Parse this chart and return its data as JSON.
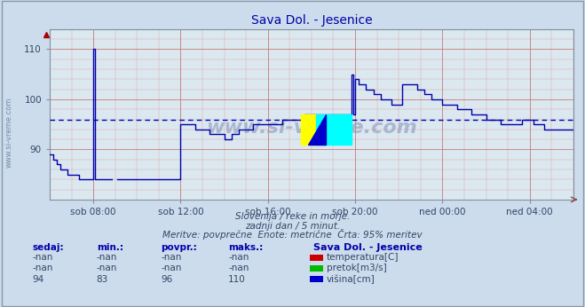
{
  "title": "Sava Dol. - Jesenice",
  "bg_color": "#ccdcec",
  "plot_bg_color": "#dce8f0",
  "line_color": "#0000aa",
  "avg_line_color": "#0000cc",
  "avg_line_value": 96,
  "ylim": [
    80,
    114
  ],
  "yticks": [
    90,
    100,
    110
  ],
  "xticklabels": [
    "sob 08:00",
    "sob 12:00",
    "sob 16:00",
    "sob 20:00",
    "ned 00:00",
    "ned 04:00"
  ],
  "subtitle1": "Slovenija / reke in morje.",
  "subtitle2": "zadnji dan / 5 minut.",
  "subtitle3": "Meritve: povprečne  Enote: metrične  Črta: 95% meritev",
  "legend_title": "Sava Dol. - Jesenice",
  "legend_items": [
    {
      "label": "temperatura[C]",
      "color": "#cc0000"
    },
    {
      "label": "pretok[m3/s]",
      "color": "#00bb00"
    },
    {
      "label": "višina[cm]",
      "color": "#0000cc"
    }
  ],
  "table_headers": [
    "sedaj:",
    "min.:",
    "povpr.:",
    "maks.:"
  ],
  "table_rows": [
    [
      "-nan",
      "-nan",
      "-nan",
      "-nan"
    ],
    [
      "-nan",
      "-nan",
      "-nan",
      "-nan"
    ],
    [
      "94",
      "83",
      "96",
      "110"
    ]
  ],
  "watermark": "www.si-vreme.com",
  "n_points": 289
}
